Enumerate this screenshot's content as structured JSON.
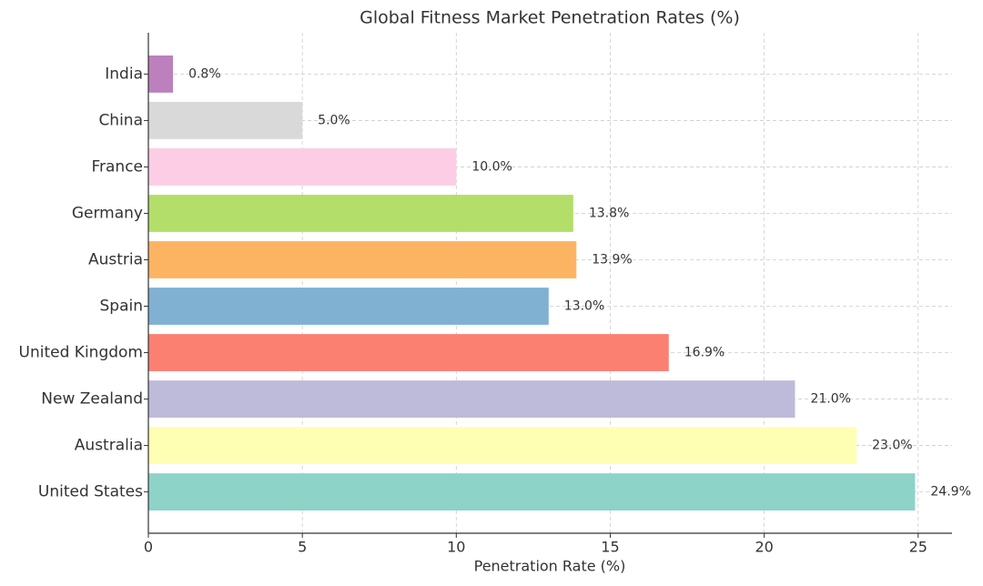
{
  "chart_data": {
    "type": "bar",
    "orientation": "horizontal",
    "title": "Global Fitness Market Penetration Rates (%)",
    "x_label": "Penetration Rate (%)",
    "categories": [
      "United States",
      "Australia",
      "New Zealand",
      "United Kingdom",
      "Spain",
      "Austria",
      "Germany",
      "France",
      "China",
      "India"
    ],
    "values": [
      24.9,
      23.0,
      21.0,
      16.9,
      13.0,
      13.9,
      13.8,
      10.0,
      5.0,
      0.8
    ],
    "value_labels": [
      "24.9%",
      "23.0%",
      "21.0%",
      "16.9%",
      "13.0%",
      "13.9%",
      "13.8%",
      "10.0%",
      "5.0%",
      "0.8%"
    ],
    "colors": [
      "#8dd3c7",
      "#ffffb3",
      "#bebada",
      "#fb8072",
      "#80b1d3",
      "#fdb462",
      "#b3de69",
      "#fccde5",
      "#d9d9d9",
      "#bc80bd"
    ],
    "xlim": [
      0,
      26.1
    ],
    "xticks": [
      0,
      5,
      10,
      15,
      20,
      25
    ],
    "grid": true
  }
}
